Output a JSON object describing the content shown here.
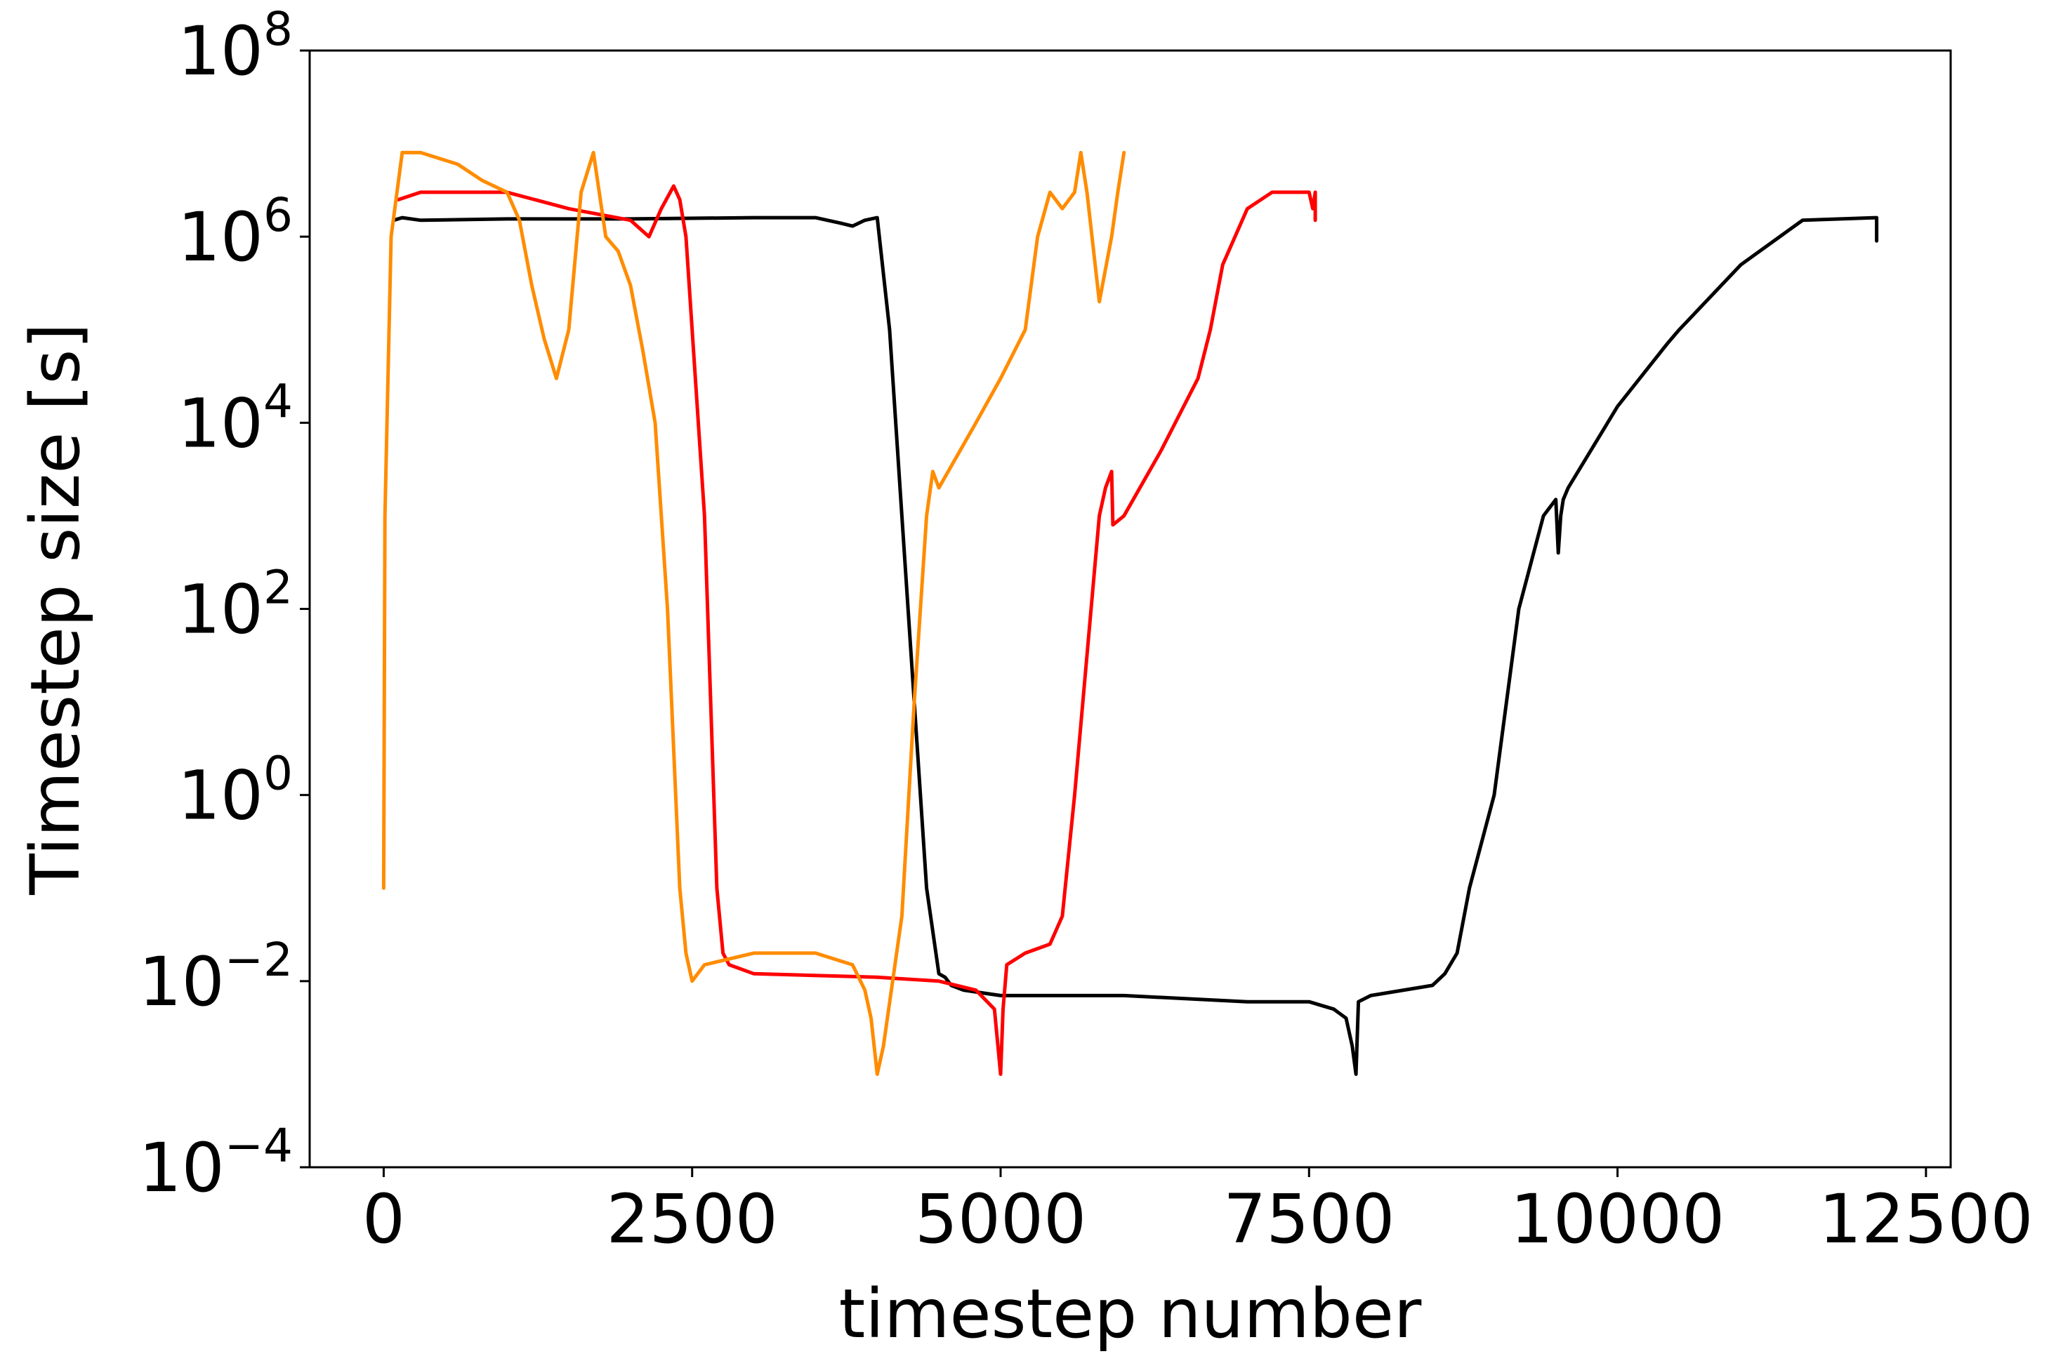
{
  "chart_data": {
    "type": "line",
    "title": "",
    "xlabel": "timestep number",
    "ylabel": "Timestep size [s]",
    "yscale": "log",
    "xlim": [
      -600,
      12700
    ],
    "ylim": [
      0.0001,
      100000000
    ],
    "grid": false,
    "legend": "none",
    "x_ticks": [
      0,
      2500,
      5000,
      7500,
      10000,
      12500
    ],
    "x_tick_labels": [
      "0",
      "2500",
      "5000",
      "7500",
      "10000",
      "12500"
    ],
    "y_ticks": [
      {
        "value": 0.0001,
        "base": "10",
        "exp": "−4"
      },
      {
        "value": 0.01,
        "base": "10",
        "exp": "−2"
      },
      {
        "value": 1,
        "base": "10",
        "exp": "0"
      },
      {
        "value": 100,
        "base": "10",
        "exp": "2"
      },
      {
        "value": 10000,
        "base": "10",
        "exp": "4"
      },
      {
        "value": 1000000,
        "base": "10",
        "exp": "6"
      },
      {
        "value": 100000000,
        "base": "10",
        "exp": "8"
      }
    ],
    "series": [
      {
        "color": "#000000",
        "x": [
          80,
          150,
          300,
          1000,
          2000,
          3000,
          3500,
          3700,
          3800,
          3900,
          4000,
          4100,
          4200,
          4300,
          4400,
          4500,
          4550,
          4600,
          4700,
          5000,
          6000,
          7000,
          7500,
          7700,
          7800,
          7850,
          7880,
          7900,
          8000,
          8500,
          8600,
          8700,
          8800,
          9000,
          9200,
          9400,
          9500,
          9520,
          9540,
          9560,
          9600,
          10000,
          10400,
          10500,
          11000,
          11500,
          12100,
          12100
        ],
        "y": [
          1500000,
          1600000,
          1500000,
          1550000,
          1550000,
          1600000,
          1600000,
          1400000,
          1300000,
          1500000,
          1600000,
          100000,
          1000,
          10,
          0.1,
          0.012,
          0.011,
          0.009,
          0.008,
          0.007,
          0.007,
          0.006,
          0.006,
          0.005,
          0.004,
          0.002,
          0.001,
          0.006,
          0.007,
          0.009,
          0.012,
          0.02,
          0.1,
          1,
          100,
          1000,
          1500,
          400,
          1000,
          1500,
          2000,
          15000,
          70000,
          100000,
          500000,
          1500000,
          1600000,
          900000
        ]
      },
      {
        "color": "#ff0000",
        "x": [
          120,
          300,
          800,
          1000,
          1500,
          2000,
          2150,
          2250,
          2350,
          2400,
          2450,
          2500,
          2600,
          2650,
          2700,
          2750,
          2800,
          3000,
          4000,
          4500,
          4800,
          4950,
          5000,
          5020,
          5050,
          5200,
          5400,
          5500,
          5600,
          5800,
          5850,
          5900,
          5910,
          6000,
          6300,
          6600,
          6700,
          6800,
          7000,
          7200,
          7500,
          7530,
          7550,
          7550
        ],
        "y": [
          2500000,
          3000000,
          3000000,
          3000000,
          2000000,
          1500000,
          1000000,
          2000000,
          3500000,
          2500000,
          1000000,
          100000,
          1000,
          10,
          0.1,
          0.02,
          0.015,
          0.012,
          0.011,
          0.01,
          0.008,
          0.005,
          0.001,
          0.005,
          0.015,
          0.02,
          0.025,
          0.05,
          1,
          1000,
          2000,
          3000,
          800,
          1000,
          5000,
          30000,
          100000,
          500000,
          2000000,
          3000000,
          3000000,
          2000000,
          3000000,
          1500000
        ]
      },
      {
        "color": "#ff8c00",
        "x": [
          0,
          10,
          60,
          150,
          300,
          600,
          800,
          1000,
          1100,
          1200,
          1300,
          1400,
          1500,
          1600,
          1700,
          1800,
          1900,
          2000,
          2100,
          2200,
          2300,
          2400,
          2450,
          2500,
          2600,
          3000,
          3500,
          3800,
          3900,
          3950,
          4000,
          4050,
          4200,
          4300,
          4400,
          4450,
          4500,
          4800,
          5000,
          5200,
          5300,
          5400,
          5500,
          5600,
          5650,
          5700,
          5800,
          5900,
          5950,
          6000
        ],
        "y": [
          0.1,
          1000,
          1000000,
          8000000,
          8000000,
          6000000,
          4000000,
          3000000,
          1500000,
          300000,
          80000,
          30000,
          100000,
          3000000,
          8000000,
          1000000,
          700000,
          300000,
          60000,
          10000,
          100,
          0.1,
          0.02,
          0.01,
          0.015,
          0.02,
          0.02,
          0.015,
          0.008,
          0.004,
          0.001,
          0.002,
          0.05,
          10,
          1000,
          3000,
          2000,
          10000,
          30000,
          100000,
          1000000,
          3000000,
          2000000,
          3000000,
          8000000,
          3000000,
          200000,
          1000000,
          3000000,
          8000000
        ]
      }
    ]
  }
}
